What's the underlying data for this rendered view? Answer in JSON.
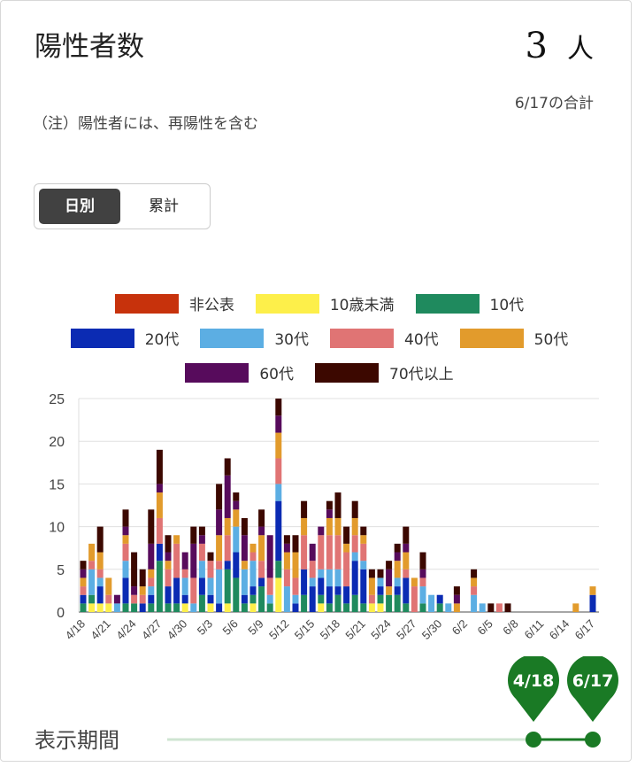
{
  "header": {
    "title": "陽性者数",
    "total_value": "3",
    "total_unit": "人",
    "total_date": "6/17の合計",
    "note": "（注）陽性者には、再陽性を含む"
  },
  "toggle": {
    "daily_label": "日別",
    "cumulative_label": "累計",
    "selected": "日別"
  },
  "period": {
    "label": "表示期間",
    "start": "4/18",
    "end": "6/17",
    "accent": "#1a7a25"
  },
  "chart_data": {
    "type": "bar",
    "stacked": true,
    "title": "",
    "xlabel": "",
    "ylabel": "",
    "ylim": [
      0,
      25
    ],
    "yticks": [
      0,
      5,
      10,
      15,
      20,
      25
    ],
    "grid": true,
    "legend_placement": "top",
    "categories": [
      "4/18",
      "4/19",
      "4/20",
      "4/21",
      "4/22",
      "4/23",
      "4/24",
      "4/25",
      "4/26",
      "4/27",
      "4/28",
      "4/29",
      "4/30",
      "5/1",
      "5/2",
      "5/3",
      "5/4",
      "5/5",
      "5/6",
      "5/7",
      "5/8",
      "5/9",
      "5/10",
      "5/11",
      "5/12",
      "5/13",
      "5/14",
      "5/15",
      "5/16",
      "5/17",
      "5/18",
      "5/19",
      "5/20",
      "5/21",
      "5/22",
      "5/23",
      "5/24",
      "5/25",
      "5/26",
      "5/27",
      "5/28",
      "5/29",
      "5/30",
      "5/31",
      "6/1",
      "6/2",
      "6/3",
      "6/4",
      "6/5",
      "6/6",
      "6/7",
      "6/8",
      "6/9",
      "6/10",
      "6/11",
      "6/12",
      "6/13",
      "6/14",
      "6/15",
      "6/16",
      "6/17"
    ],
    "xtick_labels": [
      "4/18",
      "4/21",
      "4/24",
      "4/27",
      "4/30",
      "5/3",
      "5/6",
      "5/9",
      "5/12",
      "5/15",
      "5/18",
      "5/21",
      "5/24",
      "5/27",
      "5/30",
      "6/2",
      "6/5",
      "6/8",
      "6/11",
      "6/14",
      "6/17"
    ],
    "series": [
      {
        "name": "非公表",
        "color": "#c7320c",
        "values": [
          0,
          0,
          0,
          0,
          0,
          0,
          0,
          0,
          0,
          0,
          0,
          0,
          0,
          0,
          0,
          0,
          0,
          0,
          0,
          0,
          0,
          0,
          0,
          0,
          0,
          0,
          0,
          0,
          0,
          0,
          0,
          0,
          0,
          0,
          0,
          0,
          0,
          0,
          0,
          0,
          0,
          0,
          0,
          0,
          0,
          0,
          0,
          0,
          0,
          0,
          0,
          0,
          0,
          0,
          0,
          0,
          0,
          0,
          0,
          0,
          0
        ]
      },
      {
        "name": "10歳未満",
        "color": "#fdef4a",
        "values": [
          0,
          1,
          1,
          1,
          0,
          0,
          0,
          0,
          0,
          0,
          0,
          0,
          1,
          0,
          0,
          1,
          0,
          1,
          0,
          0,
          1,
          0,
          0,
          4,
          0,
          0,
          0,
          0,
          1,
          0,
          0,
          0,
          0,
          0,
          1,
          1,
          0,
          0,
          0,
          0,
          0,
          0,
          0,
          0,
          0,
          0,
          0,
          0,
          0,
          0,
          0,
          0,
          0,
          0,
          0,
          0,
          0,
          0,
          0,
          0,
          0
        ]
      },
      {
        "name": "10代",
        "color": "#1f8a5e",
        "values": [
          1,
          1,
          0,
          0,
          0,
          1,
          1,
          0,
          1,
          6,
          1,
          1,
          0,
          0,
          2,
          0,
          0,
          4,
          4,
          1,
          1,
          3,
          1,
          2,
          0,
          0,
          2,
          0,
          1,
          1,
          2,
          1,
          2,
          1,
          0,
          1,
          2,
          2,
          1,
          0,
          1,
          0,
          1,
          0,
          0,
          0,
          0,
          0,
          0,
          0,
          0,
          0,
          0,
          0,
          0,
          0,
          0,
          0,
          0,
          0,
          0
        ]
      },
      {
        "name": "20代",
        "color": "#0b2bb3",
        "values": [
          1,
          0,
          2,
          0,
          0,
          3,
          0,
          1,
          1,
          2,
          2,
          3,
          1,
          0,
          2,
          1,
          1,
          1,
          3,
          1,
          1,
          1,
          0,
          7,
          0,
          1,
          3,
          3,
          2,
          2,
          1,
          2,
          4,
          4,
          0,
          1,
          0,
          1,
          3,
          0,
          0,
          0,
          1,
          0,
          0,
          0,
          0,
          0,
          0,
          0,
          0,
          0,
          0,
          0,
          0,
          0,
          0,
          0,
          0,
          0,
          2
        ]
      },
      {
        "name": "30代",
        "color": "#5caee3",
        "values": [
          0,
          3,
          1,
          0,
          1,
          2,
          0,
          0,
          1,
          0,
          0,
          0,
          2,
          1,
          2,
          2,
          4,
          0,
          3,
          3,
          3,
          0,
          1,
          2,
          3,
          1,
          0,
          1,
          1,
          2,
          2,
          0,
          1,
          1,
          0,
          1,
          0,
          1,
          0,
          0,
          2,
          2,
          0,
          1,
          0,
          0,
          2,
          1,
          0,
          0,
          0,
          0,
          0,
          0,
          0,
          0,
          0,
          0,
          0,
          0,
          0
        ]
      },
      {
        "name": "40代",
        "color": "#e07474",
        "values": [
          1,
          1,
          1,
          1,
          0,
          2,
          1,
          1,
          1,
          3,
          2,
          4,
          1,
          3,
          2,
          2,
          1,
          3,
          0,
          0,
          1,
          2,
          2,
          3,
          2,
          2,
          4,
          2,
          4,
          4,
          4,
          4,
          2,
          2,
          1,
          0,
          0,
          0,
          1,
          3,
          1,
          0,
          0,
          0,
          0,
          0,
          1,
          0,
          0,
          1,
          0,
          0,
          0,
          0,
          0,
          0,
          0,
          0,
          0,
          0,
          0
        ]
      },
      {
        "name": "50代",
        "color": "#e29b2c",
        "values": [
          1,
          2,
          2,
          2,
          0,
          1,
          0,
          1,
          1,
          3,
          1,
          1,
          0,
          0,
          0,
          0,
          3,
          2,
          2,
          1,
          1,
          3,
          0,
          3,
          2,
          3,
          2,
          0,
          0,
          2,
          2,
          1,
          2,
          1,
          2,
          0,
          1,
          2,
          2,
          1,
          0,
          0,
          0,
          0,
          1,
          0,
          1,
          0,
          0,
          0,
          0,
          0,
          0,
          0,
          0,
          0,
          0,
          0,
          1,
          0,
          1
        ]
      },
      {
        "name": "60代",
        "color": "#570b5c",
        "values": [
          1,
          0,
          0,
          0,
          1,
          1,
          1,
          0,
          3,
          1,
          1,
          0,
          2,
          4,
          1,
          0,
          3,
          5,
          1,
          3,
          0,
          1,
          5,
          2,
          1,
          0,
          0,
          2,
          1,
          1,
          0,
          0,
          0,
          0,
          0,
          0,
          2,
          1,
          1,
          0,
          1,
          0,
          0,
          0,
          1,
          0,
          0,
          0,
          0,
          0,
          0,
          0,
          0,
          0,
          0,
          0,
          0,
          0,
          0,
          0,
          0
        ]
      },
      {
        "name": "70代以上",
        "color": "#3c0800",
        "values": [
          1,
          0,
          3,
          0,
          0,
          2,
          4,
          2,
          4,
          4,
          2,
          0,
          0,
          2,
          1,
          1,
          3,
          2,
          1,
          2,
          0,
          2,
          0,
          2,
          1,
          2,
          2,
          0,
          0,
          1,
          3,
          2,
          2,
          1,
          1,
          1,
          1,
          1,
          2,
          0,
          2,
          0,
          0,
          0,
          1,
          0,
          1,
          0,
          1,
          0,
          1,
          0,
          0,
          0,
          0,
          0,
          0,
          0,
          0,
          0,
          0
        ]
      }
    ]
  }
}
